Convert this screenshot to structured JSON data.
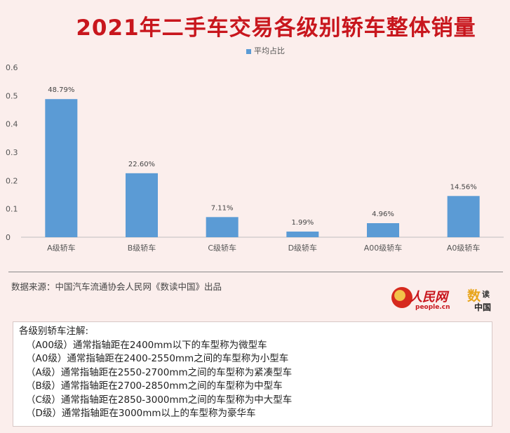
{
  "title": "2021年二手车交易各级别轿车整体销量",
  "legend": {
    "label": "平均占比",
    "color": "#5b9bd5"
  },
  "chart_data": {
    "type": "bar",
    "title": "2021年二手车交易各级别轿车整体销量",
    "categories": [
      "A级轿车",
      "B级轿车",
      "C级轿车",
      "D级轿车",
      "A00级轿车",
      "A0级轿车"
    ],
    "series": [
      {
        "name": "平均占比",
        "values": [
          0.4879,
          0.226,
          0.0711,
          0.0199,
          0.0496,
          0.1456
        ],
        "labels": [
          "48.79%",
          "22.60%",
          "7.11%",
          "1.99%",
          "4.96%",
          "14.56%"
        ]
      }
    ],
    "ylim": [
      0,
      0.6
    ],
    "yticks": [
      "0",
      "0.1",
      "0.2",
      "0.3",
      "0.4",
      "0.5",
      "0.6"
    ],
    "grid": false,
    "legend_position": "top",
    "xlabel": "",
    "ylabel": ""
  },
  "source": "数据来源：中国汽车流通协会人民网《数读中国》出品",
  "logos": {
    "people_cn": "人民网",
    "people_en": "people.cn",
    "shudu_shu": "数",
    "shudu_du": "读",
    "shudu_zg": "中国"
  },
  "notes": {
    "heading": "各级别轿车注解:",
    "items": [
      "（A00级）通常指轴距在2400mm以下的车型称为微型车",
      "（A0级）通常指轴距在2400-2550mm之间的车型称为小型车",
      "（A级）通常指轴距在2550-2700mm之间的车型称为紧凑型车",
      "（B级）通常指轴距在2700-2850mm之间的车型称为中型车",
      "（C级）通常指轴距在2850-3000mm之间的车型称为中大型车",
      "（D级）通常指轴距在3000mm以上的车型称为豪华车"
    ]
  }
}
